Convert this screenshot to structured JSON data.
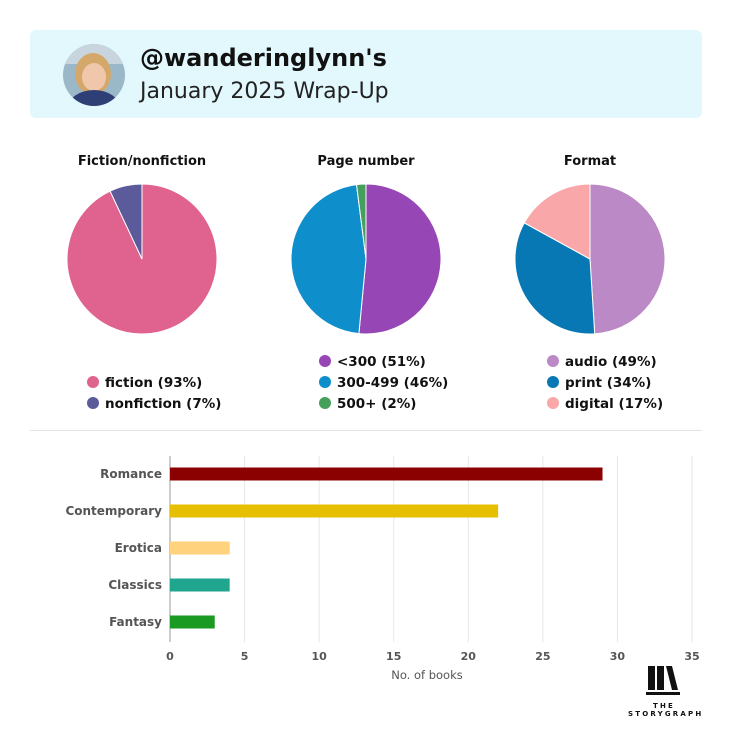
{
  "header": {
    "handle": "@wanderinglynn's",
    "subtitle": "January 2025 Wrap-Up"
  },
  "chart_data": [
    {
      "type": "pie",
      "title": "Fiction/nonfiction",
      "labels": [
        "fiction (93%)",
        "nonfiction (7%)"
      ],
      "values": [
        93,
        7
      ],
      "colors": [
        "#e0628f",
        "#5b5b9b"
      ],
      "legend_position": "below"
    },
    {
      "type": "pie",
      "title": "Page number",
      "labels": [
        "<300 (51%)",
        "300-499 (46%)",
        "500+ (2%)"
      ],
      "values": [
        51,
        46,
        2
      ],
      "colors": [
        "#9747b5",
        "#0e8fcb",
        "#45a05b"
      ],
      "legend_position": "below"
    },
    {
      "type": "pie",
      "title": "Format",
      "labels": [
        "audio (49%)",
        "print (34%)",
        "digital (17%)"
      ],
      "values": [
        49,
        34,
        17
      ],
      "colors": [
        "#bb8ac6",
        "#0778b4",
        "#f9a7a9"
      ],
      "legend_position": "below"
    },
    {
      "type": "bar",
      "orientation": "horizontal",
      "categories": [
        "Romance",
        "Contemporary",
        "Erotica",
        "Classics",
        "Fantasy"
      ],
      "values": [
        29,
        22,
        4,
        4,
        3
      ],
      "colors": [
        "#8b0000",
        "#e6c000",
        "#ffd27d",
        "#20a58e",
        "#1a9a22"
      ],
      "xlabel": "No. of books",
      "ylabel": "",
      "xlim": [
        0,
        35
      ],
      "xticks": [
        0,
        5,
        10,
        15,
        20,
        25,
        30,
        35
      ],
      "grid": true
    }
  ],
  "logo": {
    "text": "THE STORYGRAPH"
  }
}
